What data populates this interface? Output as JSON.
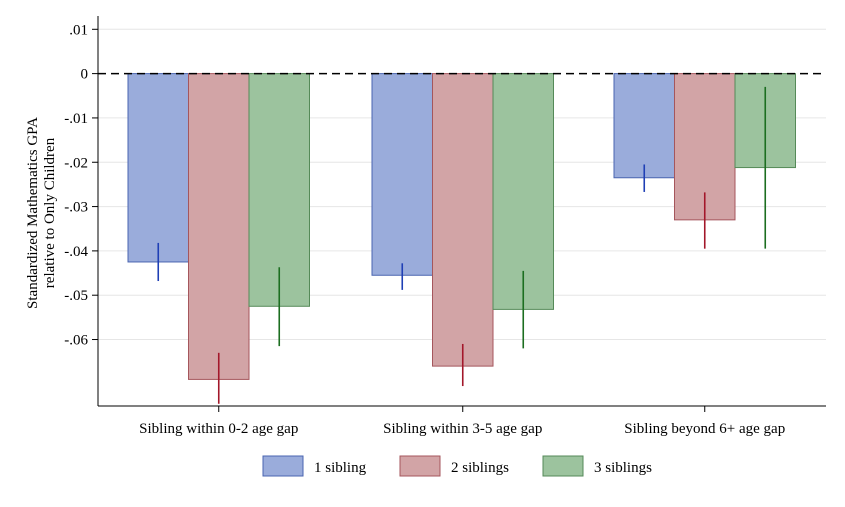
{
  "chart_data": {
    "type": "bar",
    "ylabel_line1": "Standardized Mathematics GPA",
    "ylabel_line2": "relative to Only Children",
    "xlabel": "",
    "ylim": [
      -0.075,
      0.013
    ],
    "yticks": [
      {
        "value": 0.01,
        "label": ".01"
      },
      {
        "value": 0,
        "label": "0"
      },
      {
        "value": -0.01,
        "label": "-.01"
      },
      {
        "value": -0.02,
        "label": "-.02"
      },
      {
        "value": -0.03,
        "label": "-.03"
      },
      {
        "value": -0.04,
        "label": "-.04"
      },
      {
        "value": -0.05,
        "label": "-.05"
      },
      {
        "value": -0.06,
        "label": "-.06"
      }
    ],
    "categories": [
      "Sibling within 0-2 age gap",
      "Sibling within 3-5 age gap",
      "Sibling beyond 6+ age gap"
    ],
    "series": [
      {
        "name": "1 sibling",
        "fill": "#9aacdb",
        "stroke": "#4a64b0",
        "ci_color": "#1f3fb5",
        "values": [
          -0.0425,
          -0.0455,
          -0.0235
        ],
        "ci_low": [
          -0.0468,
          -0.0488,
          -0.0267
        ],
        "ci_high": [
          -0.0382,
          -0.0428,
          -0.0205
        ]
      },
      {
        "name": "2 siblings",
        "fill": "#d2a4a6",
        "stroke": "#a5565c",
        "ci_color": "#a3172a",
        "values": [
          -0.069,
          -0.066,
          -0.033
        ],
        "ci_low": [
          -0.0745,
          -0.0705,
          -0.0395
        ],
        "ci_high": [
          -0.063,
          -0.061,
          -0.0268
        ]
      },
      {
        "name": "3 siblings",
        "fill": "#9cc39e",
        "stroke": "#558a58",
        "ci_color": "#1c6e20",
        "values": [
          -0.0525,
          -0.0532,
          -0.0212
        ],
        "ci_low": [
          -0.0615,
          -0.062,
          -0.0395
        ],
        "ci_high": [
          -0.0437,
          -0.0445,
          -0.003
        ]
      }
    ],
    "grid": true,
    "reference_line": {
      "value": 0,
      "style": "dashed"
    },
    "legend_position": "bottom"
  }
}
